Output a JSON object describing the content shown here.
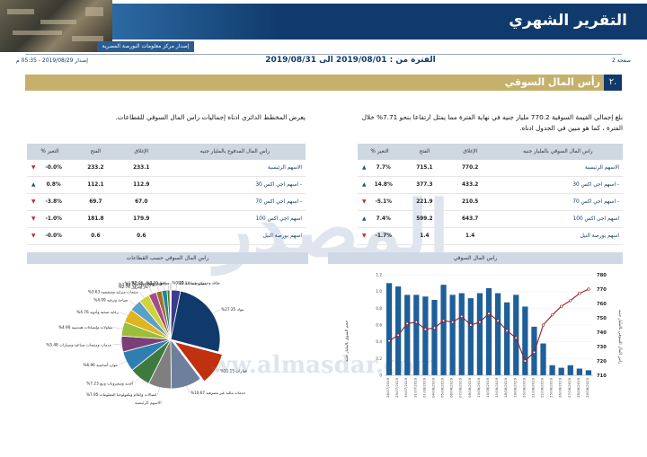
{
  "header": {
    "report_title": "التقرير الشهري",
    "source_strip": "إصدار مركز معلومات البورصة المصرية",
    "page_label": "صفحة 2",
    "issue_date": "إصدار 2019/08/29 - 05:35 م",
    "period": "الفترة من : 2019/08/01 الى 2019/08/31"
  },
  "section": {
    "number": "٢.",
    "title": "رأس المال السوقي"
  },
  "paragraphs": {
    "right": "بلغ إجمالي القيمة السوقية 770.2 مليار جنيه في نهاية الفترة مما يمثل ارتفاعا بنحو 7.71% خلال الفترة ، كما هو مبين في الجدول ادناه.",
    "left": "يعرض المخطط الدائري ادناه إجماليات راس المال السوقي للقطاعات."
  },
  "table_market_cap": {
    "headers": [
      "راس المال السوقي بالمليار جنيه",
      "الإغلاق",
      "الفتح",
      "% التغير"
    ],
    "rows": [
      {
        "name": "الاسهم الرئيسية",
        "close": "770.2",
        "open": "715.1",
        "change": "7.7%",
        "dir": "up"
      },
      {
        "name": "- اسهم اجي اكس 30",
        "close": "433.2",
        "open": "377.3",
        "change": "14.8%",
        "dir": "up"
      },
      {
        "name": "- اسهم اجي اكس 70",
        "close": "210.5",
        "open": "221.9",
        "change": "-5.1%",
        "dir": "down"
      },
      {
        "name": "اسهم اجي اكس 100",
        "close": "643.7",
        "open": "599.2",
        "change": "7.4%",
        "dir": "up"
      },
      {
        "name": "اسهم بورصة النيل",
        "close": "1.4",
        "open": "1.4",
        "change": "-1.7%",
        "dir": "down"
      }
    ]
  },
  "table_paid_cap": {
    "headers": [
      "راس المال المدفوع بالمليار جنيه",
      "الإغلاق",
      "الفتح",
      "% التغير"
    ],
    "rows": [
      {
        "name": "الاسهم الرئيسية",
        "close": "233.1",
        "open": "233.2",
        "change": "-0.0%",
        "dir": "down"
      },
      {
        "name": "- اسهم اجي اكس 30",
        "close": "112.9",
        "open": "112.1",
        "change": "0.8%",
        "dir": "up"
      },
      {
        "name": "- اسهم اجي اكس 70",
        "close": "67.0",
        "open": "69.7",
        "change": "-3.8%",
        "dir": "down"
      },
      {
        "name": "اسهم اجي اكس 100",
        "close": "179.9",
        "open": "181.8",
        "change": "-1.0%",
        "dir": "down"
      },
      {
        "name": "اسهم بورصة النيل",
        "close": "0.6",
        "open": "0.6",
        "change": "-0.0%",
        "dir": "down"
      }
    ]
  },
  "panels": {
    "right_chart_title": "راس المال السوقي",
    "left_chart_title": "راس المال السوقي حسب القطاعات",
    "pie_caption": "الاسهم الرئيسية",
    "y_left_label": "حجم السوق بالمليار جنيه",
    "y_right_label": "راس المال السوقي بالمليار جنيه"
  },
  "watermark": {
    "big": "المصدر",
    "url": "www.almasdar.com"
  },
  "chart_data": [
    {
      "type": "bar",
      "title": "راس المال السوقي",
      "categories": [
        "28/07/2019",
        "29/07/2019",
        "30/07/2019",
        "31/07/2019",
        "01/08/2019",
        "04/08/2019",
        "05/08/2019",
        "06/08/2019",
        "07/08/2019",
        "08/08/2019",
        "13/08/2019",
        "14/08/2019",
        "15/08/2019",
        "18/08/2019",
        "19/08/2019",
        "20/08/2019",
        "21/08/2019",
        "22/08/2019",
        "25/08/2019",
        "26/08/2019",
        "27/08/2019",
        "28/08/2019",
        "29/08/2019"
      ],
      "series": [
        {
          "axis": "left",
          "values": [
            1.1,
            1.06,
            0.96,
            0.96,
            0.94,
            0.9,
            1.08,
            0.96,
            0.98,
            0.92,
            0.98,
            1.04,
            0.98,
            0.87,
            0.96,
            0.82,
            0.58,
            0.38,
            0.12,
            0.09,
            0.12,
            0.08,
            0.06
          ]
        },
        {
          "axis": "right",
          "values": [
            734,
            738,
            746,
            747,
            742,
            743,
            748,
            747,
            751,
            745,
            747,
            753,
            748,
            741,
            736,
            720,
            726,
            745,
            752,
            758,
            762,
            767,
            770
          ]
        }
      ],
      "ylim_left": [
        0.0,
        1.2
      ],
      "y_ticks_left": [
        "0",
        "0.2",
        "0.4",
        "0.6",
        "0.8",
        "1.0",
        "1.2"
      ],
      "ylim_right": [
        710,
        780
      ],
      "y_ticks_right": [
        "710",
        "720",
        "730",
        "740",
        "750",
        "760",
        "770",
        "780"
      ]
    },
    {
      "type": "pie",
      "title": "راس المال السوقي حسب القطاعات",
      "slices": [
        {
          "label": "%بنوك",
          "value": 27.25,
          "color": "#0f3a6b"
        },
        {
          "label": "%عقارات",
          "value": 11.15,
          "color": "#c0310f"
        },
        {
          "label": "%خدمات مالية غير مصرفية",
          "value": 10.67,
          "color": "#6d7f9a"
        },
        {
          "label": "%اتصالات وإعلام وتكنولوجيا المعلومات",
          "value": 7.95,
          "color": "#7f7f7f"
        },
        {
          "label": "%أغذية ومشروبات وتبغ",
          "value": 7.23,
          "color": "#3d7a3d"
        },
        {
          "label": "%موارد أساسية",
          "value": 6.96,
          "color": "#2e7fb0"
        },
        {
          "label": "%خدمات ومنتجات صناعية وسيارات",
          "value": 5.48,
          "color": "#7b3f78"
        },
        {
          "label": "%مقاولات وإنشاءات هندسية",
          "value": 4.9,
          "color": "#9cbf3b"
        },
        {
          "label": "%رعاية صحية وأدوية",
          "value": 4.76,
          "color": "#e0b520"
        },
        {
          "label": "%سياحة وترفيه",
          "value": 4.09,
          "color": "#5aa0c8"
        },
        {
          "label": "%منتجات منزلية وشخصية",
          "value": 3.63,
          "color": "#d2d23a"
        },
        {
          "label": "%غاز وبترول",
          "value": 2.76,
          "color": "#9e4f8a"
        },
        {
          "label": "%تجارة وموزعون",
          "value": 1.93,
          "color": "#a66b2b"
        },
        {
          "label": "%ورق ومواد تعبئة",
          "value": 1.82,
          "color": "#1f8a8a"
        },
        {
          "label": "%خدمات تعليمية",
          "value": 0.96,
          "color": "#55752f"
        },
        {
          "label": "%مرافق",
          "value": 0.3,
          "color": "#8fb1d6"
        },
        {
          "label": "%طاقة وخدمات مساندة",
          "value": 0.2,
          "color": "#c23b6e"
        },
        {
          "label": "%منسوجات",
          "value": 3.14,
          "color": "#3b3b8f"
        }
      ]
    }
  ]
}
